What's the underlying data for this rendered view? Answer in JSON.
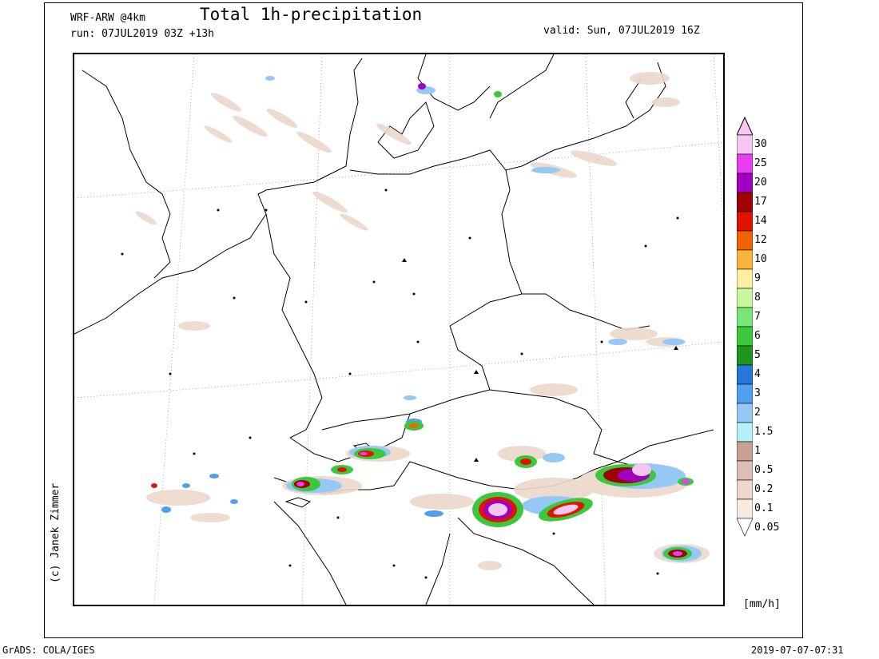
{
  "header": {
    "model": "WRF-ARW @4km",
    "title": "Total 1h-precipitation",
    "run": "run: 07JUL2019 03Z +13h",
    "valid": "valid: Sun, 07JUL2019 16Z"
  },
  "credit": "(c) Janek Zimmer",
  "footer": {
    "left": "GrADS: COLA/IGES",
    "right": "2019-07-07-07:31"
  },
  "legend": {
    "unit": "[mm/h]",
    "levels": [
      {
        "label": "30",
        "color": "#f5c6f0"
      },
      {
        "label": "25",
        "color": "#ea3cf0"
      },
      {
        "label": "20",
        "color": "#a000c0"
      },
      {
        "label": "17",
        "color": "#a00000"
      },
      {
        "label": "14",
        "color": "#e01400"
      },
      {
        "label": "12",
        "color": "#f06400"
      },
      {
        "label": "10",
        "color": "#f8b43c"
      },
      {
        "label": "9",
        "color": "#fff0a0"
      },
      {
        "label": "8",
        "color": "#c8f7a0"
      },
      {
        "label": "7",
        "color": "#78e678"
      },
      {
        "label": "6",
        "color": "#3cc83c"
      },
      {
        "label": "5",
        "color": "#1e961e"
      },
      {
        "label": "4",
        "color": "#2878dc"
      },
      {
        "label": "3",
        "color": "#50a0f0"
      },
      {
        "label": "2",
        "color": "#96c8f5"
      },
      {
        "label": "1.5",
        "color": "#b4f0fa"
      },
      {
        "label": "1",
        "color": "#c8a096"
      },
      {
        "label": "0.5",
        "color": "#dcbeb4"
      },
      {
        "label": "0.2",
        "color": "#ecd8cc"
      },
      {
        "label": "0.1",
        "color": "#f8eadf"
      },
      {
        "label": "0.05",
        "color": "#ffffff"
      }
    ]
  }
}
